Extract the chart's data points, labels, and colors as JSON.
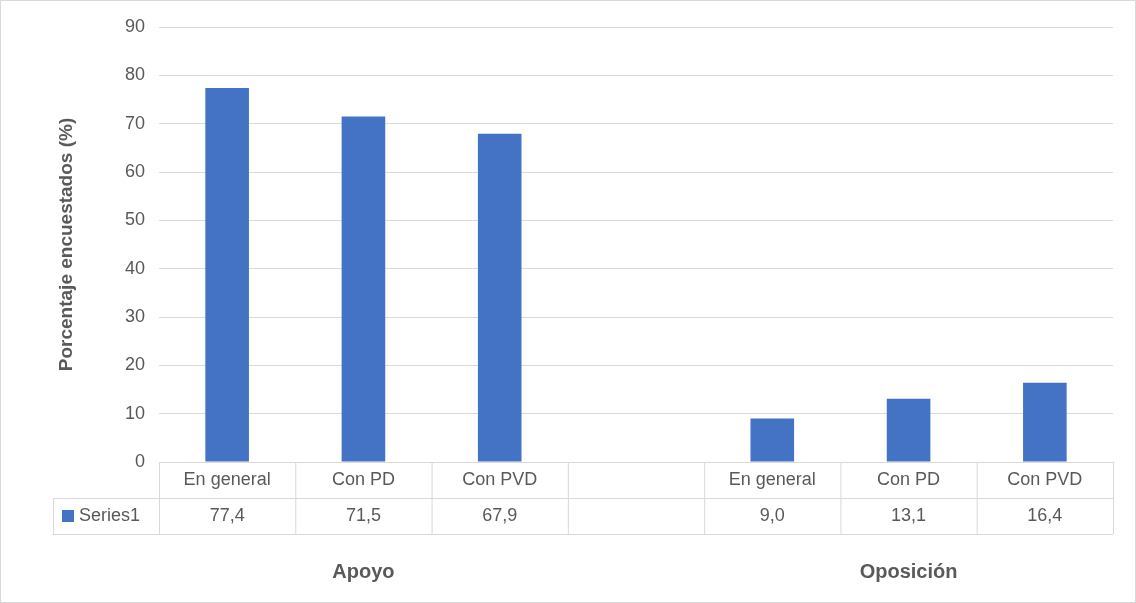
{
  "chart_data": {
    "type": "bar",
    "ylabel": "Porcentaje encuestados (%)",
    "categories": [
      "En general",
      "Con PD",
      "Con PVD",
      null,
      "En general",
      "Con PD",
      "Con PVD"
    ],
    "series": [
      {
        "name": "Series1",
        "color": "#4472c4",
        "values": [
          77.4,
          71.5,
          67.9,
          null,
          9.0,
          13.1,
          16.4
        ],
        "value_labels": [
          "77,4",
          "71,5",
          "67,9",
          null,
          "9,0",
          "13,1",
          "16,4"
        ]
      }
    ],
    "ylim": [
      0,
      90
    ],
    "yticks": [
      0,
      10,
      20,
      30,
      40,
      50,
      60,
      70,
      80,
      90
    ],
    "grid": "y",
    "legend": "bottom",
    "annotations": [
      "Apoyo",
      "Oposición"
    ]
  }
}
